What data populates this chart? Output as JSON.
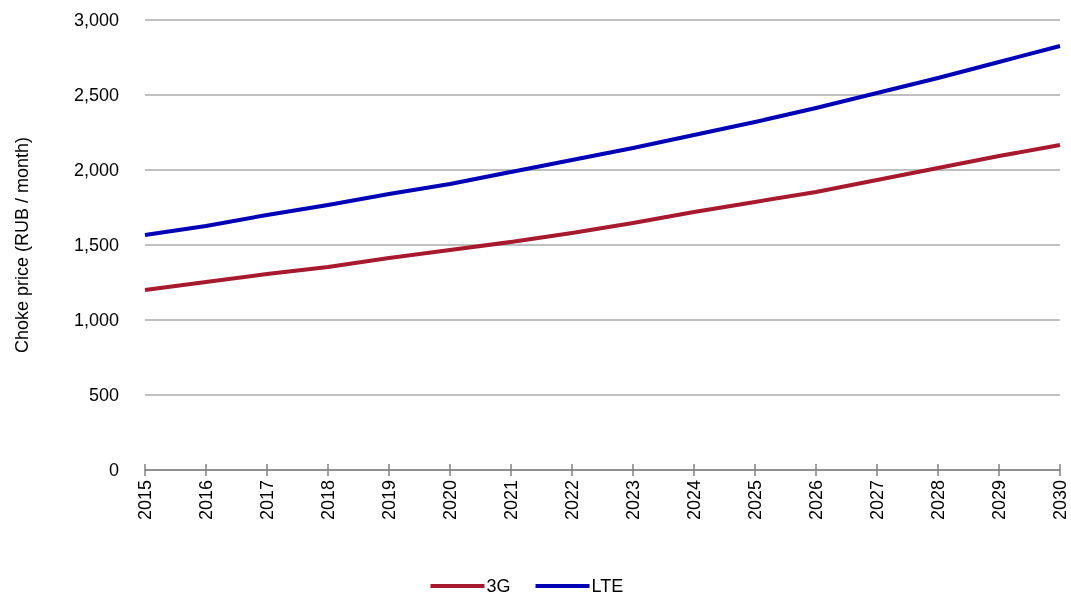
{
  "chart_data": {
    "type": "line",
    "ylabel": "Choke price (RUB / month)",
    "categories": [
      "2015",
      "2016",
      "2017",
      "2018",
      "2019",
      "2020",
      "2021",
      "2022",
      "2023",
      "2024",
      "2025",
      "2026",
      "2027",
      "2028",
      "2029",
      "2030"
    ],
    "series": [
      {
        "name": "3G",
        "color": "#a6192e",
        "values": [
          1200,
          1253,
          1307,
          1353,
          1413,
          1467,
          1520,
          1580,
          1647,
          1720,
          1787,
          1853,
          1933,
          2013,
          2093,
          2167
        ]
      },
      {
        "name": "LTE",
        "color": "#0000b4",
        "values": [
          1567,
          1627,
          1700,
          1767,
          1840,
          1907,
          1987,
          2067,
          2147,
          2233,
          2320,
          2413,
          2513,
          2613,
          2720,
          2827
        ]
      }
    ],
    "ylim": [
      0,
      3000
    ],
    "yticks": [
      0,
      500,
      {
        "value": 1000,
        "label": "1,000"
      },
      {
        "value": 1500,
        "label": "1,500"
      },
      {
        "value": 2000,
        "label": "2,000"
      },
      {
        "value": 2500,
        "label": "2,500"
      },
      {
        "value": 3000,
        "label": "3,000"
      }
    ],
    "grid": "y",
    "legend": "bottom",
    "marker": "none",
    "line_style": "solid"
  }
}
